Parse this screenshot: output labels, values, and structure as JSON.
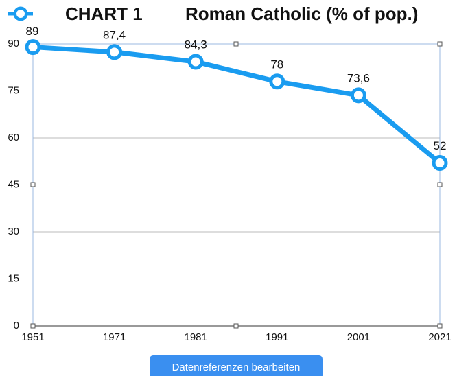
{
  "chart_data": {
    "type": "line",
    "title": "Roman Catholic (% of pop.)",
    "categories": [
      "1951",
      "1971",
      "1981",
      "1991",
      "2001",
      "2021"
    ],
    "series": [
      {
        "name": "CHART 1",
        "color": "#1a9cf0",
        "values": [
          89,
          87.4,
          84.3,
          78,
          73.6,
          52
        ],
        "value_labels": [
          "89",
          "87,4",
          "84,3",
          "78",
          "73,6",
          "52"
        ]
      }
    ],
    "ylim": [
      0,
      90
    ],
    "yticks": [
      0,
      15,
      30,
      45,
      60,
      75,
      90
    ],
    "grid": true
  },
  "button": {
    "label": "Datenreferenzen bearbeiten"
  }
}
